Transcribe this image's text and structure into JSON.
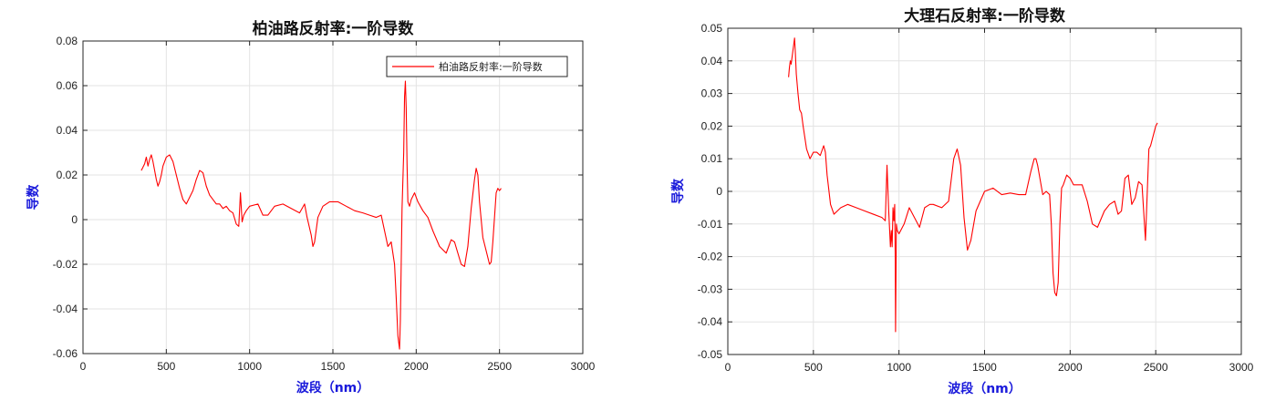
{
  "chart_data": [
    {
      "type": "line",
      "title": "柏油路反射率:一阶导数",
      "xlabel": "波段（nm）",
      "ylabel": "导数",
      "xlim": [
        0,
        3000
      ],
      "ylim": [
        -0.06,
        0.08
      ],
      "xticks": [
        0,
        500,
        1000,
        1500,
        2000,
        2500,
        3000
      ],
      "xtick_labels": [
        "0",
        "500",
        "1000",
        "1500",
        "2000",
        "2500",
        "3000"
      ],
      "yticks": [
        -0.06,
        -0.04,
        -0.02,
        0,
        0.02,
        0.04,
        0.06,
        0.08
      ],
      "ytick_labels": [
        "-0.06",
        "-0.04",
        "-0.02",
        "0",
        "0.02",
        "0.04",
        "0.06",
        "0.08"
      ],
      "grid": true,
      "legend_position": "top-right",
      "series": [
        {
          "name": "柏油路反射率:一阶导数",
          "color": "#ff0000",
          "x": [
            350,
            370,
            380,
            390,
            400,
            410,
            420,
            430,
            440,
            450,
            460,
            470,
            480,
            500,
            520,
            540,
            560,
            580,
            600,
            620,
            640,
            660,
            680,
            700,
            720,
            740,
            760,
            780,
            800,
            820,
            840,
            860,
            880,
            900,
            920,
            935,
            945,
            955,
            965,
            980,
            1000,
            1050,
            1080,
            1110,
            1150,
            1200,
            1250,
            1300,
            1330,
            1345,
            1370,
            1380,
            1390,
            1410,
            1440,
            1480,
            1530,
            1580,
            1630,
            1680,
            1720,
            1760,
            1790,
            1810,
            1830,
            1850,
            1870,
            1880,
            1890,
            1900,
            1905,
            1910,
            1915,
            1925,
            1930,
            1935,
            1940,
            1945,
            1950,
            1960,
            1970,
            1990,
            2010,
            2040,
            2070,
            2100,
            2140,
            2180,
            2210,
            2230,
            2250,
            2270,
            2290,
            2310,
            2330,
            2350,
            2360,
            2370,
            2380,
            2400,
            2420,
            2440,
            2450,
            2460,
            2480,
            2490,
            2500,
            2510
          ],
          "y": [
            0.022,
            0.025,
            0.028,
            0.024,
            0.027,
            0.029,
            0.026,
            0.022,
            0.018,
            0.015,
            0.017,
            0.02,
            0.024,
            0.028,
            0.029,
            0.026,
            0.02,
            0.014,
            0.009,
            0.007,
            0.01,
            0.013,
            0.018,
            0.022,
            0.021,
            0.015,
            0.011,
            0.009,
            0.007,
            0.007,
            0.005,
            0.006,
            0.004,
            0.003,
            -0.002,
            -0.003,
            0.012,
            -0.001,
            0.002,
            0.004,
            0.006,
            0.007,
            0.002,
            0.002,
            0.006,
            0.007,
            0.005,
            0.003,
            0.007,
            0.001,
            -0.007,
            -0.012,
            -0.01,
            0.001,
            0.006,
            0.008,
            0.008,
            0.006,
            0.004,
            0.003,
            0.002,
            0.001,
            0.002,
            -0.005,
            -0.012,
            -0.01,
            -0.02,
            -0.035,
            -0.052,
            -0.058,
            -0.045,
            -0.02,
            0.005,
            0.03,
            0.055,
            0.062,
            0.05,
            0.025,
            0.008,
            0.006,
            0.009,
            0.012,
            0.008,
            0.004,
            0.001,
            -0.005,
            -0.012,
            -0.015,
            -0.009,
            -0.01,
            -0.015,
            -0.02,
            -0.021,
            -0.012,
            0.005,
            0.018,
            0.023,
            0.02,
            0.008,
            -0.008,
            -0.014,
            -0.02,
            -0.019,
            -0.01,
            0.012,
            0.014,
            0.013,
            0.014
          ]
        }
      ]
    },
    {
      "type": "line",
      "title": "大理石反射率:一阶导数",
      "xlabel": "波段（nm）",
      "ylabel": "导数",
      "xlim": [
        0,
        3000
      ],
      "ylim": [
        -0.05,
        0.05
      ],
      "xticks": [
        0,
        500,
        1000,
        1500,
        2000,
        2500,
        3000
      ],
      "xtick_labels": [
        "0",
        "500",
        "1000",
        "1500",
        "2000",
        "2500",
        "3000"
      ],
      "yticks": [
        -0.05,
        -0.04,
        -0.03,
        -0.02,
        -0.01,
        0,
        0.01,
        0.02,
        0.03,
        0.04,
        0.05
      ],
      "ytick_labels": [
        "-0.05",
        "-0.04",
        "-0.03",
        "-0.02",
        "-0.01",
        "0",
        "0.01",
        "0.02",
        "0.03",
        "0.04",
        "0.05"
      ],
      "grid": true,
      "series": [
        {
          "color": "#ff0000",
          "x": [
            355,
            360,
            365,
            370,
            375,
            380,
            385,
            390,
            395,
            400,
            410,
            420,
            430,
            440,
            460,
            480,
            500,
            520,
            540,
            560,
            570,
            580,
            600,
            620,
            640,
            660,
            700,
            750,
            800,
            850,
            900,
            920,
            930,
            940,
            950,
            955,
            960,
            965,
            970,
            975,
            978,
            980,
            985,
            990,
            1000,
            1030,
            1060,
            1090,
            1120,
            1150,
            1180,
            1200,
            1250,
            1290,
            1320,
            1340,
            1360,
            1380,
            1400,
            1420,
            1450,
            1500,
            1550,
            1600,
            1650,
            1700,
            1740,
            1770,
            1790,
            1800,
            1810,
            1840,
            1860,
            1880,
            1890,
            1900,
            1910,
            1920,
            1930,
            1940,
            1950,
            1960,
            1980,
            2000,
            2020,
            2040,
            2070,
            2100,
            2130,
            2160,
            2200,
            2230,
            2260,
            2280,
            2300,
            2320,
            2340,
            2360,
            2380,
            2400,
            2420,
            2440,
            2460,
            2470,
            2480,
            2490,
            2500,
            2510
          ],
          "y": [
            0.035,
            0.038,
            0.04,
            0.039,
            0.041,
            0.043,
            0.045,
            0.047,
            0.042,
            0.036,
            0.03,
            0.025,
            0.024,
            0.02,
            0.013,
            0.01,
            0.012,
            0.012,
            0.011,
            0.014,
            0.012,
            0.005,
            -0.004,
            -0.007,
            -0.006,
            -0.005,
            -0.004,
            -0.005,
            -0.006,
            -0.007,
            -0.008,
            -0.009,
            0.008,
            -0.006,
            -0.017,
            -0.012,
            -0.017,
            -0.005,
            -0.009,
            -0.004,
            -0.02,
            -0.043,
            -0.01,
            -0.012,
            -0.013,
            -0.01,
            -0.005,
            -0.008,
            -0.011,
            -0.005,
            -0.004,
            -0.004,
            -0.005,
            -0.003,
            0.01,
            0.013,
            0.008,
            -0.008,
            -0.018,
            -0.015,
            -0.006,
            0.0,
            0.001,
            -0.001,
            -0.0005,
            -0.001,
            -0.001,
            0.006,
            0.01,
            0.01,
            0.008,
            -0.001,
            0.0,
            -0.001,
            -0.01,
            -0.025,
            -0.031,
            -0.032,
            -0.028,
            -0.01,
            0.001,
            0.002,
            0.005,
            0.004,
            0.002,
            0.002,
            0.002,
            -0.003,
            -0.01,
            -0.011,
            -0.006,
            -0.004,
            -0.003,
            -0.007,
            -0.006,
            0.004,
            0.005,
            -0.004,
            -0.002,
            0.003,
            0.002,
            -0.015,
            0.013,
            0.014,
            0.016,
            0.018,
            0.02,
            0.021
          ]
        }
      ]
    }
  ]
}
